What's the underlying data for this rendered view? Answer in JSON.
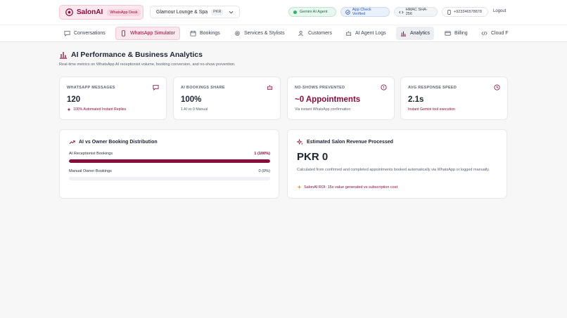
{
  "brand": {
    "name": "SalonAI",
    "tag": "WhatsApp Desk",
    "accent": "#8a0d3c"
  },
  "salon": {
    "name": "Glamour Lounge & Spa",
    "currency": "PKR"
  },
  "status": {
    "ai_agent": "Gemini AI Agent",
    "api_check": "App Check Verified",
    "hmac": "HMAC SHA-256",
    "phone": "+923346578878"
  },
  "logout_label": "Logout",
  "nav": {
    "items": [
      {
        "label": "Conversations",
        "icon": "chat-icon"
      },
      {
        "label": "WhatsApp Simulator",
        "icon": "phone-icon"
      },
      {
        "label": "Bookings",
        "icon": "calendar-icon"
      },
      {
        "label": "Services & Stylists",
        "icon": "gear-icon"
      },
      {
        "label": "Customers",
        "icon": "users-icon"
      },
      {
        "label": "AI Agent Logs",
        "icon": "robot-icon"
      },
      {
        "label": "Analytics",
        "icon": "bar-chart-icon"
      },
      {
        "label": "Billing",
        "icon": "credit-card-icon"
      },
      {
        "label": "Cloud F",
        "icon": "code-icon"
      }
    ],
    "active": "Analytics"
  },
  "page": {
    "title": "AI Performance & Business Analytics",
    "subtitle": "Real-time metrics on WhatsApp AI receptionist volume, booking conversion, and no-show prevention."
  },
  "stats": [
    {
      "label": "WHATSAPP MESSAGES",
      "value": "120",
      "note": "100% Automated Instant Replies",
      "icon": "message-icon"
    },
    {
      "label": "AI BOOKINGS SHARE",
      "value": "100%",
      "note": "1 AI vs 0 Manual",
      "icon": "robot-icon"
    },
    {
      "label": "NO-SHOWS PREVENTED",
      "value": "~0 Appointments",
      "note": "Via instant WhatsApp confirmation",
      "icon": "alert-icon"
    },
    {
      "label": "AVG RESPONSE SPEED",
      "value": "2.1s",
      "note": "Instant Gemini tool execution",
      "icon": "clock-icon"
    }
  ],
  "distribution": {
    "title": "AI vs Owner Booking Distribution",
    "rows": [
      {
        "label": "AI Receptionist Bookings",
        "value": "1 (100%)",
        "fraction": 1.0
      },
      {
        "label": "Manual Owner Bookings",
        "value": "0 (0%)",
        "fraction": 0.0
      }
    ]
  },
  "revenue": {
    "title": "Estimated Salon Revenue Processed",
    "amount": "PKR 0",
    "description": "Calculated from confirmed and completed appointments booked automatically via WhatsApp or logged manually.",
    "roi": "SalonAI ROI: 15x value generated vs subscription cost"
  }
}
